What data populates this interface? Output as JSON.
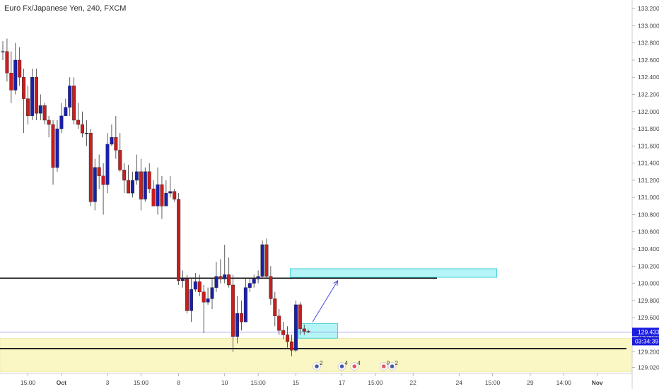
{
  "header": {
    "symbol_title": "Euro Fx/Japanese Yen, 240, FXCM"
  },
  "price_labels": {
    "current_price": "129.433",
    "countdown": "03:34:39"
  },
  "colors": {
    "bull": "#1a20a8",
    "bear": "#c81e1e",
    "zone_cyan": "#5ee9ee",
    "zone_yellow": "#fbf7c4",
    "line_black": "#111111",
    "arrow": "#4a4ae0",
    "price_tag": "#1b1be0"
  },
  "chart_data": {
    "type": "candlestick",
    "timeframe": "240",
    "ylim": [
      128.95,
      133.3
    ],
    "y_ticks": [
      "133.200",
      "133.000",
      "132.800",
      "132.600",
      "132.400",
      "132.200",
      "132.000",
      "131.800",
      "131.600",
      "131.400",
      "131.200",
      "131.000",
      "130.800",
      "130.600",
      "130.400",
      "130.200",
      "130.000",
      "129.800",
      "129.600",
      "129.400",
      "129.200",
      "129.020"
    ],
    "x_ticks": [
      {
        "label": "15:00",
        "bar": 6,
        "bold": false
      },
      {
        "label": "Oct",
        "bar": 14,
        "bold": true
      },
      {
        "label": "3",
        "bar": 25,
        "bold": false
      },
      {
        "label": "15:00",
        "bar": 33,
        "bold": false
      },
      {
        "label": "8",
        "bar": 42,
        "bold": false
      },
      {
        "label": "10",
        "bar": 53,
        "bold": false
      },
      {
        "label": "15:00",
        "bar": 61,
        "bold": false
      },
      {
        "label": "15",
        "bar": 70,
        "bold": false
      },
      {
        "label": "17",
        "bar": 81,
        "bold": false
      },
      {
        "label": "15:00",
        "bar": 89,
        "bold": false
      },
      {
        "label": "22",
        "bar": 98,
        "bold": false
      },
      {
        "label": "24",
        "bar": 109,
        "bold": false
      },
      {
        "label": "15:00",
        "bar": 117,
        "bold": false
      },
      {
        "label": "29",
        "bar": 126,
        "bold": false
      },
      {
        "label": "14:00",
        "bar": 134,
        "bold": false
      },
      {
        "label": "Nov",
        "bar": 142,
        "bold": true
      }
    ],
    "candles": [
      [
        132.7,
        132.7,
        132.82,
        132.6
      ],
      [
        132.7,
        132.45,
        132.85,
        132.35
      ],
      [
        132.45,
        132.25,
        132.7,
        132.1
      ],
      [
        132.25,
        132.6,
        132.8,
        132.2
      ],
      [
        132.6,
        132.4,
        132.75,
        132.3
      ],
      [
        132.4,
        132.15,
        132.5,
        131.75
      ],
      [
        132.15,
        131.95,
        132.3,
        131.85
      ],
      [
        131.95,
        132.4,
        132.5,
        131.9
      ],
      [
        132.4,
        131.98,
        132.5,
        131.9
      ],
      [
        131.98,
        132.07,
        132.2,
        131.9
      ],
      [
        132.07,
        131.9,
        132.1,
        131.85
      ],
      [
        131.9,
        131.85,
        131.95,
        131.7
      ],
      [
        131.85,
        131.35,
        131.9,
        131.15
      ],
      [
        131.35,
        131.8,
        131.9,
        131.3
      ],
      [
        131.8,
        131.95,
        132.1,
        131.75
      ],
      [
        131.95,
        132.05,
        132.15,
        131.95
      ],
      [
        132.05,
        132.3,
        132.4,
        131.95
      ],
      [
        132.3,
        131.9,
        132.4,
        131.85
      ],
      [
        131.9,
        131.85,
        132.1,
        131.8
      ],
      [
        131.85,
        131.75,
        132.0,
        131.7
      ],
      [
        131.75,
        131.75,
        131.9,
        131.6
      ],
      [
        131.75,
        130.95,
        131.8,
        130.9
      ],
      [
        130.95,
        131.35,
        131.45,
        130.85
      ],
      [
        131.35,
        131.25,
        131.5,
        131.1
      ],
      [
        131.25,
        131.15,
        131.4,
        130.8
      ],
      [
        131.15,
        131.62,
        131.75,
        131.05
      ],
      [
        131.62,
        131.7,
        131.85,
        131.6
      ],
      [
        131.7,
        131.55,
        131.95,
        131.45
      ],
      [
        131.55,
        131.32,
        131.75,
        131.3
      ],
      [
        131.32,
        131.2,
        131.4,
        131.05
      ],
      [
        131.2,
        131.05,
        131.38,
        131.05
      ],
      [
        131.05,
        131.2,
        131.3,
        131.0
      ],
      [
        131.2,
        131.3,
        131.5,
        131.15
      ],
      [
        131.3,
        130.98,
        131.45,
        130.85
      ],
      [
        130.98,
        131.3,
        131.35,
        130.95
      ],
      [
        131.3,
        131.1,
        131.4,
        131.05
      ],
      [
        131.1,
        130.9,
        131.2,
        130.9
      ],
      [
        130.9,
        131.15,
        131.35,
        130.8
      ],
      [
        131.15,
        130.9,
        131.25,
        130.75
      ],
      [
        130.9,
        131.05,
        131.2,
        130.9
      ],
      [
        131.05,
        131.07,
        131.25,
        131.0
      ],
      [
        131.07,
        130.98,
        131.1,
        130.95
      ],
      [
        130.98,
        130.03,
        131.05,
        129.98
      ],
      [
        130.03,
        130.05,
        130.15,
        129.95
      ],
      [
        130.05,
        129.68,
        130.1,
        129.65
      ],
      [
        129.68,
        129.93,
        130.05,
        129.55
      ],
      [
        129.93,
        130.02,
        130.12,
        129.9
      ],
      [
        130.02,
        129.9,
        130.1,
        129.85
      ],
      [
        129.9,
        129.78,
        129.98,
        129.42
      ],
      [
        129.78,
        129.82,
        129.95,
        129.75
      ],
      [
        129.82,
        129.95,
        130.05,
        129.7
      ],
      [
        129.95,
        130.08,
        130.25,
        129.9
      ],
      [
        130.08,
        130.05,
        130.28,
        130.0
      ],
      [
        130.05,
        130.1,
        130.45,
        130.0
      ],
      [
        130.1,
        129.98,
        130.3,
        129.95
      ],
      [
        129.98,
        129.38,
        130.1,
        129.2
      ],
      [
        129.38,
        129.65,
        129.85,
        129.3
      ],
      [
        129.65,
        129.55,
        129.8,
        129.45
      ],
      [
        129.55,
        129.95,
        130.05,
        129.55
      ],
      [
        129.95,
        130.0,
        130.05,
        129.9
      ],
      [
        130.0,
        130.05,
        130.1,
        129.95
      ],
      [
        130.05,
        130.08,
        130.15,
        130.0
      ],
      [
        130.08,
        130.45,
        130.5,
        130.05
      ],
      [
        130.45,
        130.08,
        130.52,
        130.05
      ],
      [
        130.08,
        129.82,
        130.2,
        129.75
      ],
      [
        129.82,
        129.62,
        129.9,
        129.5
      ],
      [
        129.62,
        129.45,
        129.7,
        129.4
      ],
      [
        129.45,
        129.4,
        129.55,
        129.35
      ],
      [
        129.4,
        129.32,
        129.5,
        129.25
      ],
      [
        129.32,
        129.22,
        129.4,
        129.15
      ],
      [
        129.22,
        129.75,
        129.8,
        129.2
      ],
      [
        129.75,
        129.47,
        129.78,
        129.4
      ],
      [
        129.47,
        129.44,
        129.52,
        129.4
      ],
      [
        129.44,
        129.433,
        129.46,
        129.42
      ]
    ],
    "horizontal_lines": [
      130.06,
      129.24
    ],
    "current_price": 129.433,
    "annotations": {
      "supply_zone": {
        "price_top": 130.17,
        "price_bottom": 130.07,
        "bar_start": 69,
        "bar_end": 118
      },
      "entry_zone": {
        "price_top": 129.53,
        "price_bottom": 129.36,
        "bar_start": 71,
        "bar_end": 80
      },
      "arrow": {
        "from_bar": 74,
        "from_price": 129.55,
        "to_bar": 80,
        "to_price": 130.03
      },
      "demand_zone": {
        "price_top": 129.36,
        "price_bottom": 128.97
      }
    },
    "events": [
      {
        "bar": 75,
        "count": "2"
      },
      {
        "bar": 81,
        "count": "4"
      },
      {
        "bar": 84,
        "count": "4"
      },
      {
        "bar": 91,
        "count": "9"
      },
      {
        "bar": 93,
        "count": "2"
      }
    ]
  }
}
